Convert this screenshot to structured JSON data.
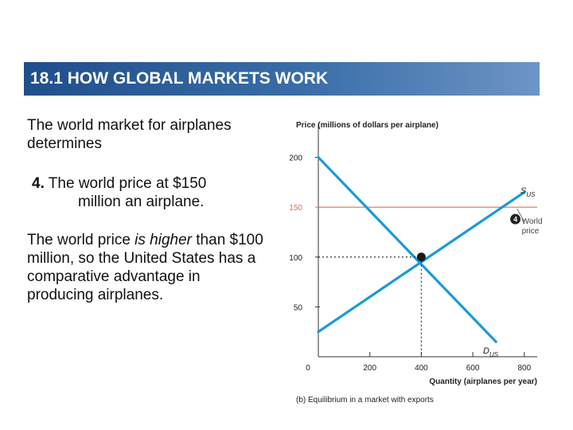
{
  "header": {
    "title": "18.1  HOW GLOBAL MARKETS WORK"
  },
  "text": {
    "p1": "The world market for airplanes determines",
    "p2_number": "4.",
    "p2_line1": " The world price at $150",
    "p2_line2": "million an airplane.",
    "p3_part1": "The world price ",
    "p3_emph": "is higher",
    "p3_part2": " than $100 million, so the United States has a comparative advantage in producing airplanes."
  },
  "colors": {
    "header_start": "#1f4e8c",
    "header_end": "#6d95c7",
    "demand_supply": "#1a9ad6",
    "world_price": "#e07050",
    "equilibrium": "#1a1a1a"
  },
  "chart_data": {
    "type": "line",
    "ylabel": "Price (millions of dollars per airplane)",
    "xlabel": "Quantity (airplanes per year)",
    "caption": "(b) Equilibrium in a market with exports",
    "xlim": [
      0,
      850
    ],
    "ylim": [
      0,
      230
    ],
    "x_ticks": [
      0,
      200,
      400,
      600,
      800
    ],
    "x_tick_labels": [
      "0",
      "200",
      "400",
      "600",
      "800"
    ],
    "y_ticks": [
      50,
      100,
      150,
      200
    ],
    "y_tick_labels": [
      "50",
      "100",
      "150",
      "200"
    ],
    "series": [
      {
        "name": "D",
        "subscript": "US",
        "role": "demand",
        "x": [
          0,
          690
        ],
        "y": [
          200,
          15
        ]
      },
      {
        "name": "S",
        "subscript": "US",
        "role": "supply",
        "x": [
          0,
          800
        ],
        "y": [
          25,
          165
        ]
      }
    ],
    "world_price": {
      "value": 150,
      "label": "150"
    },
    "equilibrium": {
      "x": 400,
      "y": 100
    },
    "annotation": {
      "number": "4",
      "text_line1": "World",
      "text_line2": "price"
    }
  }
}
